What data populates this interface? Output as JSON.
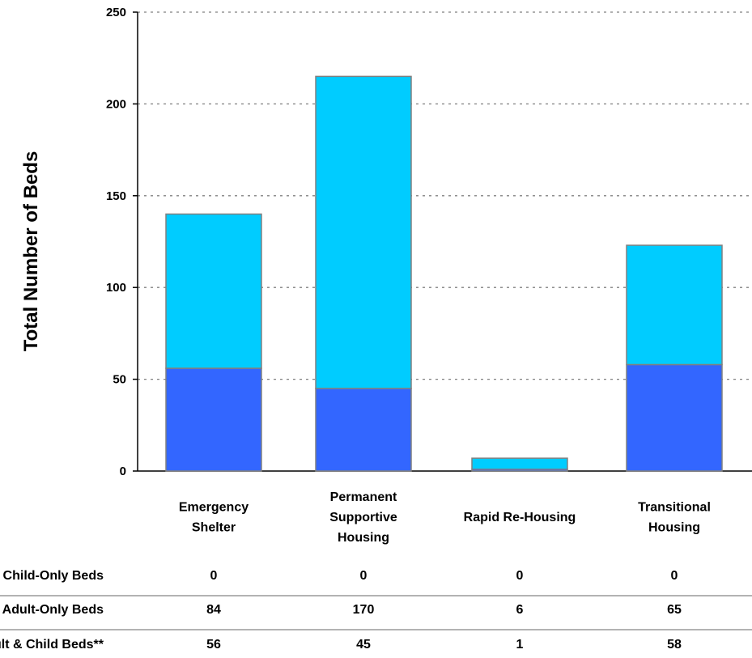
{
  "chart_data": {
    "type": "bar",
    "stacked": true,
    "ylabel": "Total Number of Beds",
    "ylim": [
      0,
      250
    ],
    "yticks": [
      0,
      50,
      100,
      150,
      200,
      250
    ],
    "grid": true,
    "categories": [
      [
        "Emergency",
        "Shelter"
      ],
      [
        "Permanent",
        "Supportive",
        "Housing"
      ],
      [
        "Rapid Re-Housing"
      ],
      [
        "Transitional",
        "Housing"
      ]
    ],
    "series": [
      {
        "name": "Adult & Child Beds**",
        "color": "#3366ff",
        "values": [
          56,
          45,
          1,
          58
        ]
      },
      {
        "name": "Adult-Only Beds",
        "color": "#00ccff",
        "values": [
          84,
          170,
          6,
          65
        ]
      },
      {
        "name": "Child-Only Beds",
        "color": "#00ccff",
        "values": [
          0,
          0,
          0,
          0
        ]
      }
    ],
    "table": {
      "rows": [
        {
          "label": "Child-Only Beds",
          "values": [
            "0",
            "0",
            "0",
            "0"
          ]
        },
        {
          "label": "Adult-Only Beds",
          "values": [
            "84",
            "170",
            "6",
            "65"
          ]
        },
        {
          "label": "Adult & Child Beds**",
          "values": [
            "56",
            "45",
            "1",
            "58"
          ]
        }
      ]
    }
  }
}
